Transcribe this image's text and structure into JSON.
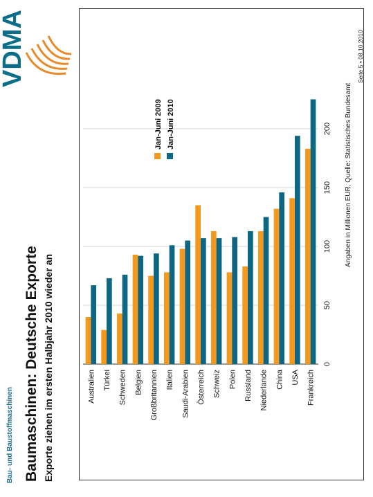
{
  "header": {
    "section": "Bau- und Baustoffmaschinen",
    "title": "Baumaschinen: Deutsche Exporte",
    "subtitle": "Exporte ziehen im ersten Halbjahr 2010 wieder an"
  },
  "footer": {
    "source": "Angaben in Millionen EUR, Quelle: Statistisches Bundesamt",
    "page": "Seite 5 • 08.10.2010"
  },
  "logo": {
    "text": "VDMA",
    "color": "#0d6e8a",
    "accent": "#e8892a"
  },
  "chart_data": {
    "type": "bar",
    "orientation": "horizontal",
    "categories": [
      "Australien",
      "Türkei",
      "Schweden",
      "Belgien",
      "Großbritannien",
      "Italien",
      "Saudi-Arabien",
      "Österreich",
      "Schweiz",
      "Polen",
      "Russland",
      "Niederlande",
      "China",
      "USA",
      "Frankreich"
    ],
    "series": [
      {
        "name": "Jan-Juni 2009",
        "color": "#f39a1e",
        "values": [
          40,
          29,
          43,
          93,
          75,
          78,
          98,
          135,
          113,
          78,
          83,
          113,
          132,
          141,
          183
        ]
      },
      {
        "name": "Jan-Juni 2010",
        "color": "#0e6682",
        "values": [
          67,
          73,
          76,
          92,
          94,
          101,
          105,
          107,
          107,
          108,
          113,
          125,
          146,
          194,
          225
        ]
      }
    ],
    "xlim": [
      0,
      240
    ],
    "xticks": [
      0,
      50,
      100,
      150,
      200
    ],
    "grid": true,
    "legend_position": "upper-right"
  }
}
